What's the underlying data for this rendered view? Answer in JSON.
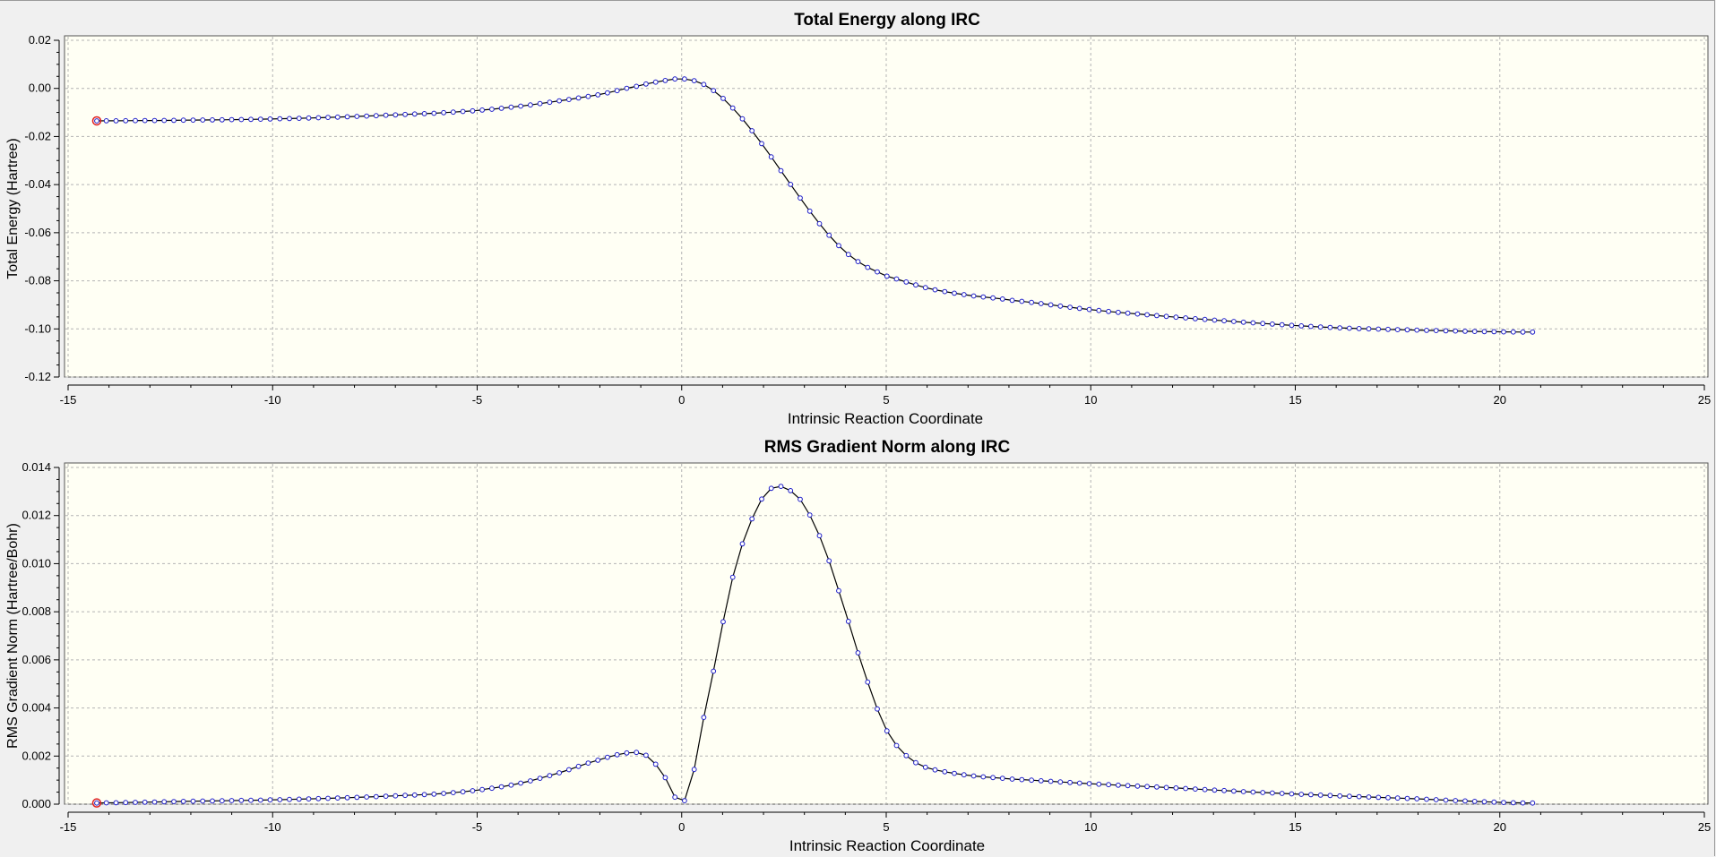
{
  "colors": {
    "background": "#f0f0f0",
    "plot_bg": "#fffff4",
    "line": "#000000",
    "marker": "#1e1ec8",
    "highlight": "#e02020",
    "grid": "#b4b4b4"
  },
  "chart_data": [
    {
      "type": "line",
      "title": "Total Energy along IRC",
      "xlabel": "Intrinsic Reaction Coordinate",
      "ylabel": "Total Energy (Hartree)",
      "xlim": [
        -15,
        25
      ],
      "ylim": [
        -0.12,
        0.02
      ],
      "xticks": [
        -15,
        -10,
        -5,
        0,
        5,
        10,
        15,
        20,
        25
      ],
      "yticks": [
        "0.02",
        "0.00",
        "-0.02",
        "-0.04",
        "-0.06",
        "-0.08",
        "-0.10",
        "-0.12"
      ],
      "grid": true,
      "x_start": -14.3,
      "x_end": 20.8,
      "n_points": 150,
      "highlight_point": {
        "x": -14.3,
        "y": -0.0135
      },
      "key_points": [
        {
          "x": -14.3,
          "y": -0.0135
        },
        {
          "x": -12.0,
          "y": -0.0132
        },
        {
          "x": -10.0,
          "y": -0.0127
        },
        {
          "x": -8.0,
          "y": -0.0117
        },
        {
          "x": -6.0,
          "y": -0.0103
        },
        {
          "x": -5.0,
          "y": -0.0092
        },
        {
          "x": -4.0,
          "y": -0.0075
        },
        {
          "x": -3.0,
          "y": -0.0052
        },
        {
          "x": -2.0,
          "y": -0.0025
        },
        {
          "x": -1.0,
          "y": 0.0012
        },
        {
          "x": -0.5,
          "y": 0.003
        },
        {
          "x": 0.0,
          "y": 0.004
        },
        {
          "x": 0.5,
          "y": 0.002
        },
        {
          "x": 1.0,
          "y": -0.004
        },
        {
          "x": 1.5,
          "y": -0.013
        },
        {
          "x": 2.0,
          "y": -0.024
        },
        {
          "x": 2.5,
          "y": -0.036
        },
        {
          "x": 3.0,
          "y": -0.048
        },
        {
          "x": 3.5,
          "y": -0.059
        },
        {
          "x": 4.0,
          "y": -0.068
        },
        {
          "x": 4.5,
          "y": -0.074
        },
        {
          "x": 5.0,
          "y": -0.078
        },
        {
          "x": 6.0,
          "y": -0.083
        },
        {
          "x": 7.0,
          "y": -0.086
        },
        {
          "x": 8.0,
          "y": -0.088
        },
        {
          "x": 10.0,
          "y": -0.092
        },
        {
          "x": 12.0,
          "y": -0.095
        },
        {
          "x": 14.0,
          "y": -0.0975
        },
        {
          "x": 16.0,
          "y": -0.0995
        },
        {
          "x": 18.0,
          "y": -0.1005
        },
        {
          "x": 20.0,
          "y": -0.1012
        },
        {
          "x": 20.8,
          "y": -0.1013
        }
      ]
    },
    {
      "type": "line",
      "title": "RMS Gradient Norm along IRC",
      "xlabel": "Intrinsic Reaction Coordinate",
      "ylabel": "RMS Gradient Norm (Hartree/Bohr)",
      "xlim": [
        -15,
        25
      ],
      "ylim": [
        0,
        0.014
      ],
      "xticks": [
        -15,
        -10,
        -5,
        0,
        5,
        10,
        15,
        20,
        25
      ],
      "yticks": [
        "0.014",
        "0.012",
        "0.010",
        "0.008",
        "0.006",
        "0.004",
        "0.002",
        "0.000"
      ],
      "grid": true,
      "x_start": -14.3,
      "x_end": 20.8,
      "n_points": 150,
      "highlight_point": {
        "x": -14.3,
        "y": 5e-05
      },
      "key_points": [
        {
          "x": -14.3,
          "y": 5e-05
        },
        {
          "x": -12.0,
          "y": 0.00012
        },
        {
          "x": -10.0,
          "y": 0.00018
        },
        {
          "x": -8.0,
          "y": 0.00028
        },
        {
          "x": -6.0,
          "y": 0.00042
        },
        {
          "x": -5.0,
          "y": 0.00058
        },
        {
          "x": -4.0,
          "y": 0.00085
        },
        {
          "x": -3.0,
          "y": 0.0013
        },
        {
          "x": -2.0,
          "y": 0.00185
        },
        {
          "x": -1.2,
          "y": 0.00215
        },
        {
          "x": -0.8,
          "y": 0.00195
        },
        {
          "x": -0.4,
          "y": 0.0011
        },
        {
          "x": 0.0,
          "y": 0.0
        },
        {
          "x": 0.3,
          "y": 0.0014
        },
        {
          "x": 0.5,
          "y": 0.0033
        },
        {
          "x": 0.8,
          "y": 0.0057
        },
        {
          "x": 1.0,
          "y": 0.0075
        },
        {
          "x": 1.3,
          "y": 0.0098
        },
        {
          "x": 1.6,
          "y": 0.0114
        },
        {
          "x": 2.0,
          "y": 0.0128
        },
        {
          "x": 2.3,
          "y": 0.0132
        },
        {
          "x": 2.6,
          "y": 0.0131
        },
        {
          "x": 3.0,
          "y": 0.0124
        },
        {
          "x": 3.5,
          "y": 0.0106
        },
        {
          "x": 4.0,
          "y": 0.008
        },
        {
          "x": 4.5,
          "y": 0.0053
        },
        {
          "x": 5.0,
          "y": 0.0031
        },
        {
          "x": 5.5,
          "y": 0.002
        },
        {
          "x": 6.0,
          "y": 0.0015
        },
        {
          "x": 7.0,
          "y": 0.0012
        },
        {
          "x": 8.0,
          "y": 0.00105
        },
        {
          "x": 10.0,
          "y": 0.00085
        },
        {
          "x": 12.0,
          "y": 0.00068
        },
        {
          "x": 14.0,
          "y": 0.0005
        },
        {
          "x": 16.0,
          "y": 0.00035
        },
        {
          "x": 18.0,
          "y": 0.00022
        },
        {
          "x": 20.0,
          "y": 8e-05
        },
        {
          "x": 20.8,
          "y": 5e-05
        }
      ]
    }
  ]
}
